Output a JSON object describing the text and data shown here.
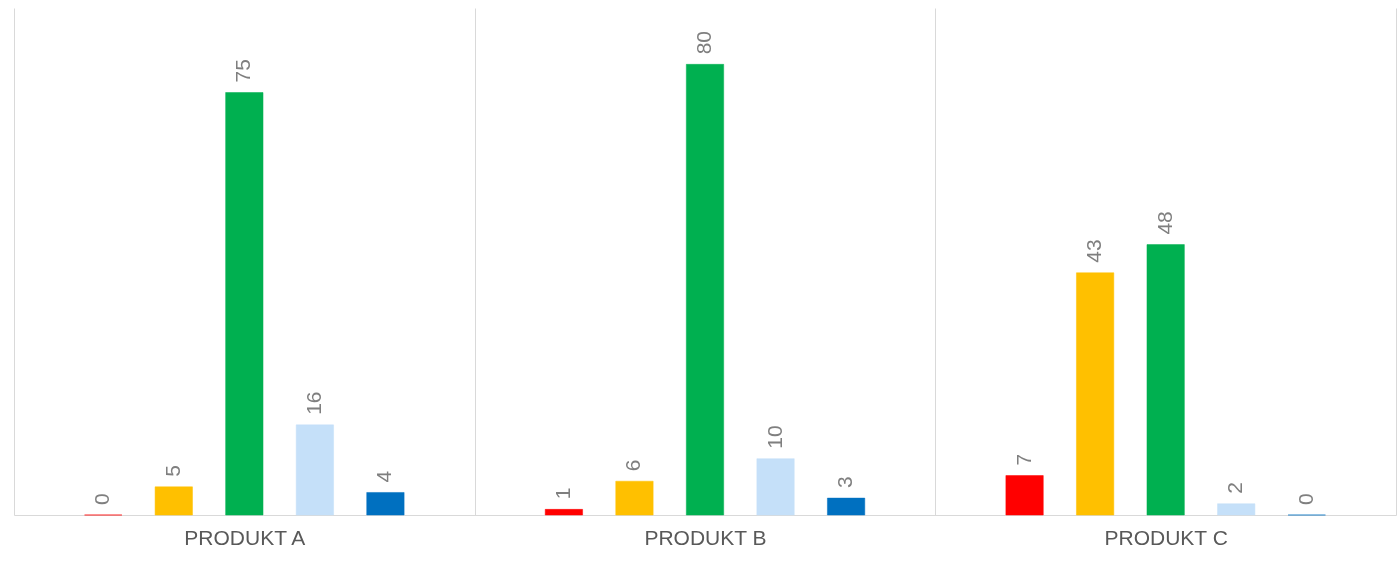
{
  "chart_data": {
    "type": "bar",
    "categories": [
      "PRODUKT A",
      "PRODUKT B",
      "PRODUKT C"
    ],
    "series": [
      {
        "color": "#ff0000",
        "values": [
          0,
          1,
          7
        ]
      },
      {
        "color": "#ffc000",
        "values": [
          5,
          6,
          43
        ]
      },
      {
        "color": "#00b050",
        "values": [
          75,
          80,
          48
        ]
      },
      {
        "color": "#c5e0f9",
        "values": [
          16,
          10,
          2
        ]
      },
      {
        "color": "#0070c0",
        "values": [
          4,
          3,
          0
        ]
      }
    ],
    "ylim": [
      0,
      90
    ],
    "tick_labels": "x",
    "grid": "x",
    "data_labels": true
  }
}
